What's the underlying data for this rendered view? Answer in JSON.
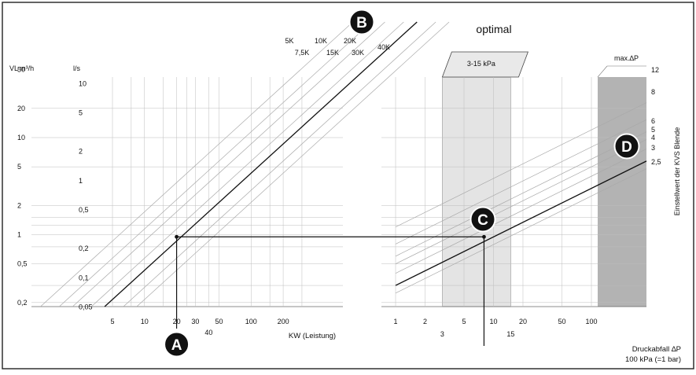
{
  "left_chart": {
    "vl_axis_title": "VL m³/h",
    "ls_axis_title": "l/s",
    "vl_ticks": [
      "50",
      "20",
      "10",
      "5",
      "2",
      "1",
      "0,5",
      "0,2"
    ],
    "vl_values": [
      50,
      20,
      10,
      5,
      2,
      1,
      0.5,
      0.2
    ],
    "ls_ticks": [
      "10",
      "5",
      "2",
      "1",
      "0,5",
      "0,2",
      "0,1",
      "0,05"
    ],
    "ls_values": [
      10,
      5,
      2,
      1,
      0.5,
      0.2,
      0.1,
      0.05
    ],
    "kw_ticks": [
      "5",
      "10",
      "20",
      "30",
      "40",
      "50",
      "100",
      "200"
    ],
    "kw_values": [
      5,
      10,
      20,
      30,
      40,
      50,
      100,
      200
    ],
    "x_axis_title": "KW (Leistung)",
    "dt_lines": [
      {
        "label": "5K",
        "dt": 5
      },
      {
        "label": "7,5K",
        "dt": 7.5
      },
      {
        "label": "10K",
        "dt": 10
      },
      {
        "label": "15K",
        "dt": 15
      },
      {
        "label": "20K",
        "dt": 20,
        "highlight": true
      },
      {
        "label": "30K",
        "dt": 30
      },
      {
        "label": "40K",
        "dt": 40
      }
    ]
  },
  "right_chart": {
    "title": "optimal",
    "optimal_range_label": "3-15 kPa",
    "max_dp_label": "max.∆P",
    "x_ticks": [
      "1",
      "2",
      "3",
      "5",
      "10",
      "15",
      "20",
      "50",
      "100"
    ],
    "x_values": [
      1,
      2,
      3,
      5,
      10,
      15,
      20,
      50,
      100
    ],
    "x_axis_title": "Druckabfall ∆P",
    "x_axis_subtitle": "100 kPa (=1 bar)",
    "y_axis_title": "Einstellwert der KVS Blende",
    "kvs_settings": [
      "12",
      "8",
      "6",
      "5",
      "4",
      "3",
      "2,5"
    ],
    "kvs_values": [
      12,
      8,
      6,
      5,
      4,
      3,
      2.5
    ],
    "highlight_setting": "3"
  },
  "markers": {
    "A": "A",
    "B": "B",
    "C": "C",
    "D": "D"
  },
  "example": {
    "kw": 20,
    "dt_k": 20,
    "flow_m3h": 0.95,
    "dp_kpa": 8
  },
  "colors": {
    "ink": "#111111",
    "grid": "#bdbdbd",
    "optimal_band": "#e4e4e4",
    "max_band": "#b3b3b3",
    "badge": "#111111"
  }
}
